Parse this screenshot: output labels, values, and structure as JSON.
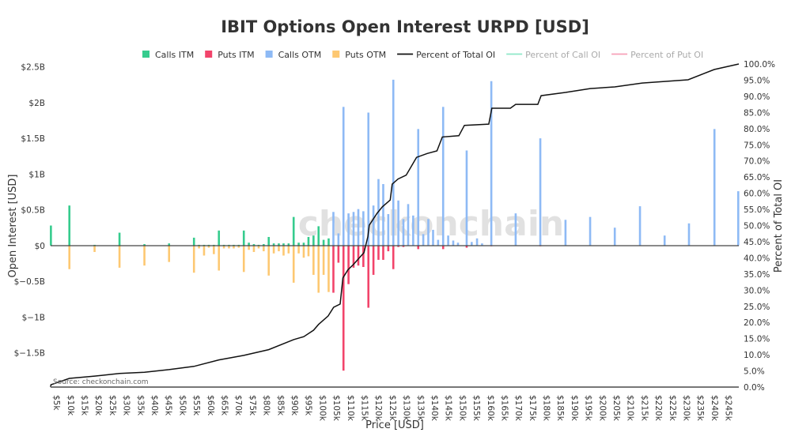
{
  "chart_data": {
    "type": "bar",
    "title": "IBIT Options Open Interest URPD [USD]",
    "xlabel": "Price [USD]",
    "ylabel": "Open Interest [USD]",
    "y2label": "Percent of Total OI",
    "source": "Source: checkonchain.com",
    "watermark": "checkonchain",
    "x_unit": "thousand USD",
    "y_unit": "billion USD",
    "xlim": [
      2.7,
      248.5
    ],
    "ylim": [
      -1.98,
      2.54
    ],
    "y2lim": [
      0,
      100
    ],
    "grid": false,
    "legend_placement": "top",
    "x_ticks": [
      "$5k",
      "$10k",
      "$15k",
      "$20k",
      "$25k",
      "$30k",
      "$35k",
      "$40k",
      "$45k",
      "$50k",
      "$55k",
      "$60k",
      "$65k",
      "$70k",
      "$75k",
      "$80k",
      "$85k",
      "$90k",
      "$95k",
      "$100k",
      "$105k",
      "$110k",
      "$115k",
      "$120k",
      "$125k",
      "$130k",
      "$135k",
      "$140k",
      "$145k",
      "$150k",
      "$155k",
      "$160k",
      "$165k",
      "$170k",
      "$175k",
      "$180k",
      "$185k",
      "$190k",
      "$195k",
      "$200k",
      "$205k",
      "$210k",
      "$215k",
      "$220k",
      "$225k",
      "$230k",
      "$235k",
      "$240k",
      "$245k"
    ],
    "y_ticks": [
      {
        "v": 2.5,
        "label": "$2.5B"
      },
      {
        "v": 2,
        "label": "$2B"
      },
      {
        "v": 1.5,
        "label": "$1.5B"
      },
      {
        "v": 1,
        "label": "$1B"
      },
      {
        "v": 0.5,
        "label": "$0.5B"
      },
      {
        "v": 0,
        "label": "$0"
      },
      {
        "v": -0.5,
        "label": "$−0.5B"
      },
      {
        "v": -1,
        "label": "$−1B"
      },
      {
        "v": -1.5,
        "label": "$−1.5B"
      }
    ],
    "y2_ticks": [
      "0.0%",
      "5.0%",
      "10.0%",
      "15.0%",
      "20.0%",
      "25.0%",
      "30.0%",
      "35.0%",
      "40.0%",
      "45.0%",
      "50.0%",
      "55.0%",
      "60.0%",
      "65.0%",
      "70.0%",
      "75.0%",
      "80.0%",
      "85.0%",
      "90.0%",
      "95.0%",
      "100.0%"
    ],
    "legend": [
      {
        "name": "Calls ITM",
        "kind": "box",
        "color": "#36cc8e",
        "active": true
      },
      {
        "name": "Puts ITM",
        "kind": "box",
        "color": "#f2446b",
        "active": true
      },
      {
        "name": "Calls OTM",
        "kind": "box",
        "color": "#8ebaf5",
        "active": true
      },
      {
        "name": "Puts OTM",
        "kind": "box",
        "color": "#fdc872",
        "active": true
      },
      {
        "name": "Percent of Total OI",
        "kind": "line",
        "color": "#111111",
        "active": true
      },
      {
        "name": "Percent of Call OI",
        "kind": "line",
        "color": "#8ee8c8",
        "active": false
      },
      {
        "name": "Percent of Put OI",
        "kind": "line",
        "color": "#f7a0b8",
        "active": false
      }
    ],
    "series": [
      {
        "name": "Calls ITM",
        "color": "#36cc8e",
        "x": [
          2.8,
          9.4,
          18.4,
          27.3,
          36.2,
          45,
          53.9,
          55.7,
          57.5,
          59.2,
          61.0,
          62.8,
          64.6,
          66.4,
          68.1,
          69.9,
          71.7,
          73.5,
          75.3,
          77.0,
          78.8,
          80.6,
          82.4,
          84.2,
          85.9,
          87.7,
          89.5,
          91.3,
          93.1,
          94.8,
          96.6,
          98.4,
          100.2,
          102.0
        ],
        "y": [
          0.28,
          0.56,
          0.01,
          0.18,
          0.02,
          0.03,
          0.11,
          0.01,
          0.01,
          0.01,
          0.01,
          0.21,
          0.01,
          0.01,
          0.01,
          0.01,
          0.21,
          0.04,
          0.02,
          0.01,
          0.02,
          0.12,
          0.03,
          0.03,
          0.03,
          0.03,
          0.4,
          0.04,
          0.04,
          0.12,
          0.14,
          0.27,
          0.08,
          0.1
        ]
      },
      {
        "name": "Puts OTM",
        "color": "#fdc872",
        "x": [
          9.4,
          18.4,
          27.3,
          36.2,
          45,
          53.9,
          55.7,
          57.5,
          59.2,
          61.0,
          62.8,
          64.6,
          66.4,
          68.1,
          69.9,
          71.7,
          73.5,
          75.3,
          77.0,
          78.8,
          80.6,
          82.4,
          84.2,
          85.9,
          87.7,
          89.5,
          91.3,
          93.1,
          94.8,
          96.6,
          98.4,
          100.2,
          102.0
        ],
        "y": [
          -0.33,
          -0.09,
          -0.31,
          -0.28,
          -0.23,
          -0.38,
          -0.04,
          -0.14,
          -0.03,
          -0.12,
          -0.35,
          -0.04,
          -0.04,
          -0.04,
          -0.03,
          -0.37,
          -0.06,
          -0.09,
          -0.04,
          -0.08,
          -0.42,
          -0.11,
          -0.08,
          -0.14,
          -0.11,
          -0.52,
          -0.11,
          -0.17,
          -0.15,
          -0.41,
          -0.66,
          -0.41,
          -0.65
        ]
      },
      {
        "name": "Calls OTM",
        "color": "#8ebaf5",
        "x": [
          103.7,
          105.5,
          107.3,
          109.1,
          110.9,
          112.6,
          114.4,
          116.2,
          118.0,
          119.8,
          121.5,
          123.3,
          125.1,
          126.9,
          128.7,
          130.4,
          132.2,
          134.0,
          135.8,
          137.6,
          139.3,
          141.1,
          142.9,
          144.7,
          146.5,
          148.2,
          151.3,
          153.1,
          155.0,
          156.8,
          160.1,
          168.8,
          177.6,
          186.6,
          195.4,
          204.2,
          213.2,
          222.0,
          230.7,
          239.8,
          248.3
        ],
        "y": [
          0.47,
          0.17,
          1.94,
          0.45,
          0.47,
          0.51,
          0.48,
          1.86,
          0.56,
          0.93,
          0.86,
          0.44,
          2.32,
          0.63,
          0.37,
          0.58,
          0.42,
          1.63,
          0.16,
          0.37,
          0.22,
          0.08,
          1.94,
          0.14,
          0.07,
          0.04,
          1.33,
          0.05,
          0.1,
          0.03,
          2.3,
          0.45,
          1.5,
          0.36,
          0.4,
          0.25,
          0.55,
          0.14,
          0.31,
          1.63,
          0.76
        ]
      },
      {
        "name": "Puts ITM",
        "color": "#f2446b",
        "x": [
          103.7,
          105.5,
          107.3,
          109.1,
          110.9,
          112.6,
          114.4,
          116.2,
          118.0,
          119.8,
          121.5,
          123.3,
          125.1,
          126.9,
          128.7,
          134.0,
          142.9,
          151.3,
          160.1,
          177.6
        ],
        "y": [
          -0.66,
          -0.24,
          -1.75,
          -0.54,
          -0.31,
          -0.28,
          -0.3,
          -0.87,
          -0.41,
          -0.2,
          -0.2,
          -0.08,
          -0.33,
          -0.02,
          -0.02,
          -0.05,
          -0.05,
          -0.03,
          -0.01,
          -0.01
        ]
      },
      {
        "name": "Percent of Total OI",
        "color": "#111111",
        "axis": "y2",
        "step": true,
        "x": [
          2.7,
          2.8,
          9.4,
          18.4,
          27.3,
          36.2,
          45,
          53.9,
          62.8,
          71.7,
          80.6,
          89.5,
          93.1,
          96.6,
          98.4,
          101.8,
          103.8,
          106.1,
          107.1,
          108.9,
          110.8,
          114.6,
          116.0,
          116.5,
          119.3,
          121.2,
          124.0,
          124.7,
          126.8,
          129.7,
          133.4,
          137.2,
          140.7,
          142.6,
          148.5,
          150.5,
          159.2,
          160.3,
          166.9,
          168.8,
          176.7,
          177.9,
          186.6,
          195.4,
          204.2,
          214.0,
          230.4,
          239.7,
          248.5
        ],
        "y": [
          0,
          0.7,
          2.7,
          3.4,
          4.2,
          4.6,
          5.4,
          6.4,
          8.4,
          9.8,
          11.6,
          14.7,
          15.6,
          17.6,
          19.4,
          22.0,
          24.7,
          25.7,
          33.8,
          36.3,
          37.9,
          41.6,
          46.5,
          50.1,
          53.8,
          55.8,
          57.9,
          62.8,
          64.4,
          65.6,
          71.1,
          72.3,
          73.1,
          77.4,
          77.8,
          81.0,
          81.4,
          86.3,
          86.3,
          87.5,
          87.5,
          90.2,
          91.2,
          92.4,
          92.9,
          94.1,
          95.1,
          98.3,
          100
        ]
      }
    ]
  }
}
